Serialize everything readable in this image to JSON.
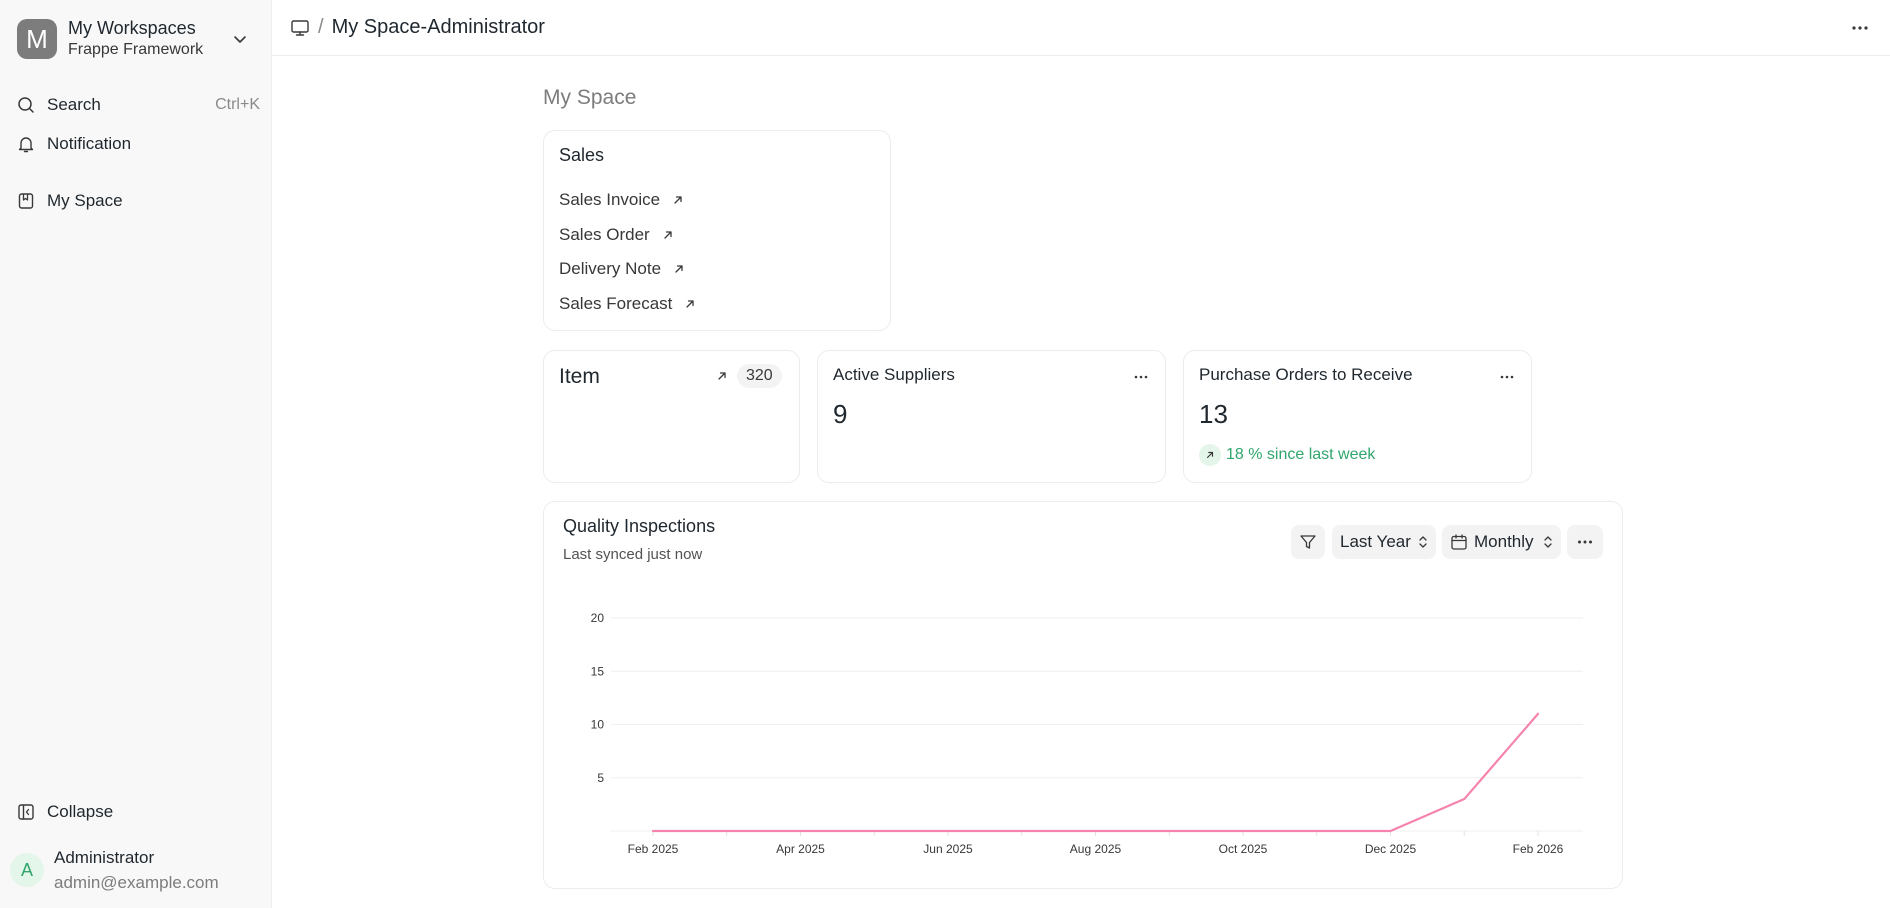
{
  "workspace": {
    "initial": "M",
    "title": "My Workspaces",
    "subtitle": "Frappe Framework"
  },
  "sidebar": {
    "search_label": "Search",
    "search_shortcut": "Ctrl+K",
    "notification_label": "Notification",
    "myspace_label": "My Space",
    "collapse_label": "Collapse"
  },
  "user": {
    "initial": "A",
    "name": "Administrator",
    "email": "admin@example.com"
  },
  "topbar": {
    "separator": "/",
    "title": "My Space-Administrator"
  },
  "page": {
    "heading": "My Space"
  },
  "sales_card": {
    "title": "Sales",
    "links": [
      {
        "label": "Sales Invoice"
      },
      {
        "label": "Sales Order"
      },
      {
        "label": "Delivery Note"
      },
      {
        "label": "Sales Forecast"
      }
    ]
  },
  "item_card": {
    "label": "Item",
    "count": "320"
  },
  "suppliers_card": {
    "title": "Active Suppliers",
    "value": "9"
  },
  "po_card": {
    "title": "Purchase Orders to Receive",
    "value": "13",
    "trend_text": "18 % since last week"
  },
  "chart": {
    "title": "Quality Inspections",
    "subtitle": "Last synced just now",
    "range_label": "Last Year",
    "period_label": "Monthly"
  },
  "colors": {
    "line": "#f683ae",
    "accent_green": "#30a66d"
  },
  "chart_data": {
    "type": "line",
    "title": "Quality Inspections",
    "x": [
      "Feb 2025",
      "Mar 2025",
      "Apr 2025",
      "May 2025",
      "Jun 2025",
      "Jul 2025",
      "Aug 2025",
      "Sep 2025",
      "Oct 2025",
      "Nov 2025",
      "Dec 2025",
      "Jan 2026",
      "Feb 2026"
    ],
    "x_tick_labels": [
      "Feb 2025",
      "Apr 2025",
      "Jun 2025",
      "Aug 2025",
      "Oct 2025",
      "Dec 2025",
      "Feb 2026"
    ],
    "series": [
      {
        "values": [
          0,
          0,
          0,
          0,
          0,
          0,
          0,
          0,
          0,
          0,
          0,
          3,
          11
        ]
      }
    ],
    "y_ticks": [
      5,
      10,
      15,
      20
    ],
    "ylim": [
      0,
      20
    ],
    "grid": true,
    "legend": "none"
  }
}
